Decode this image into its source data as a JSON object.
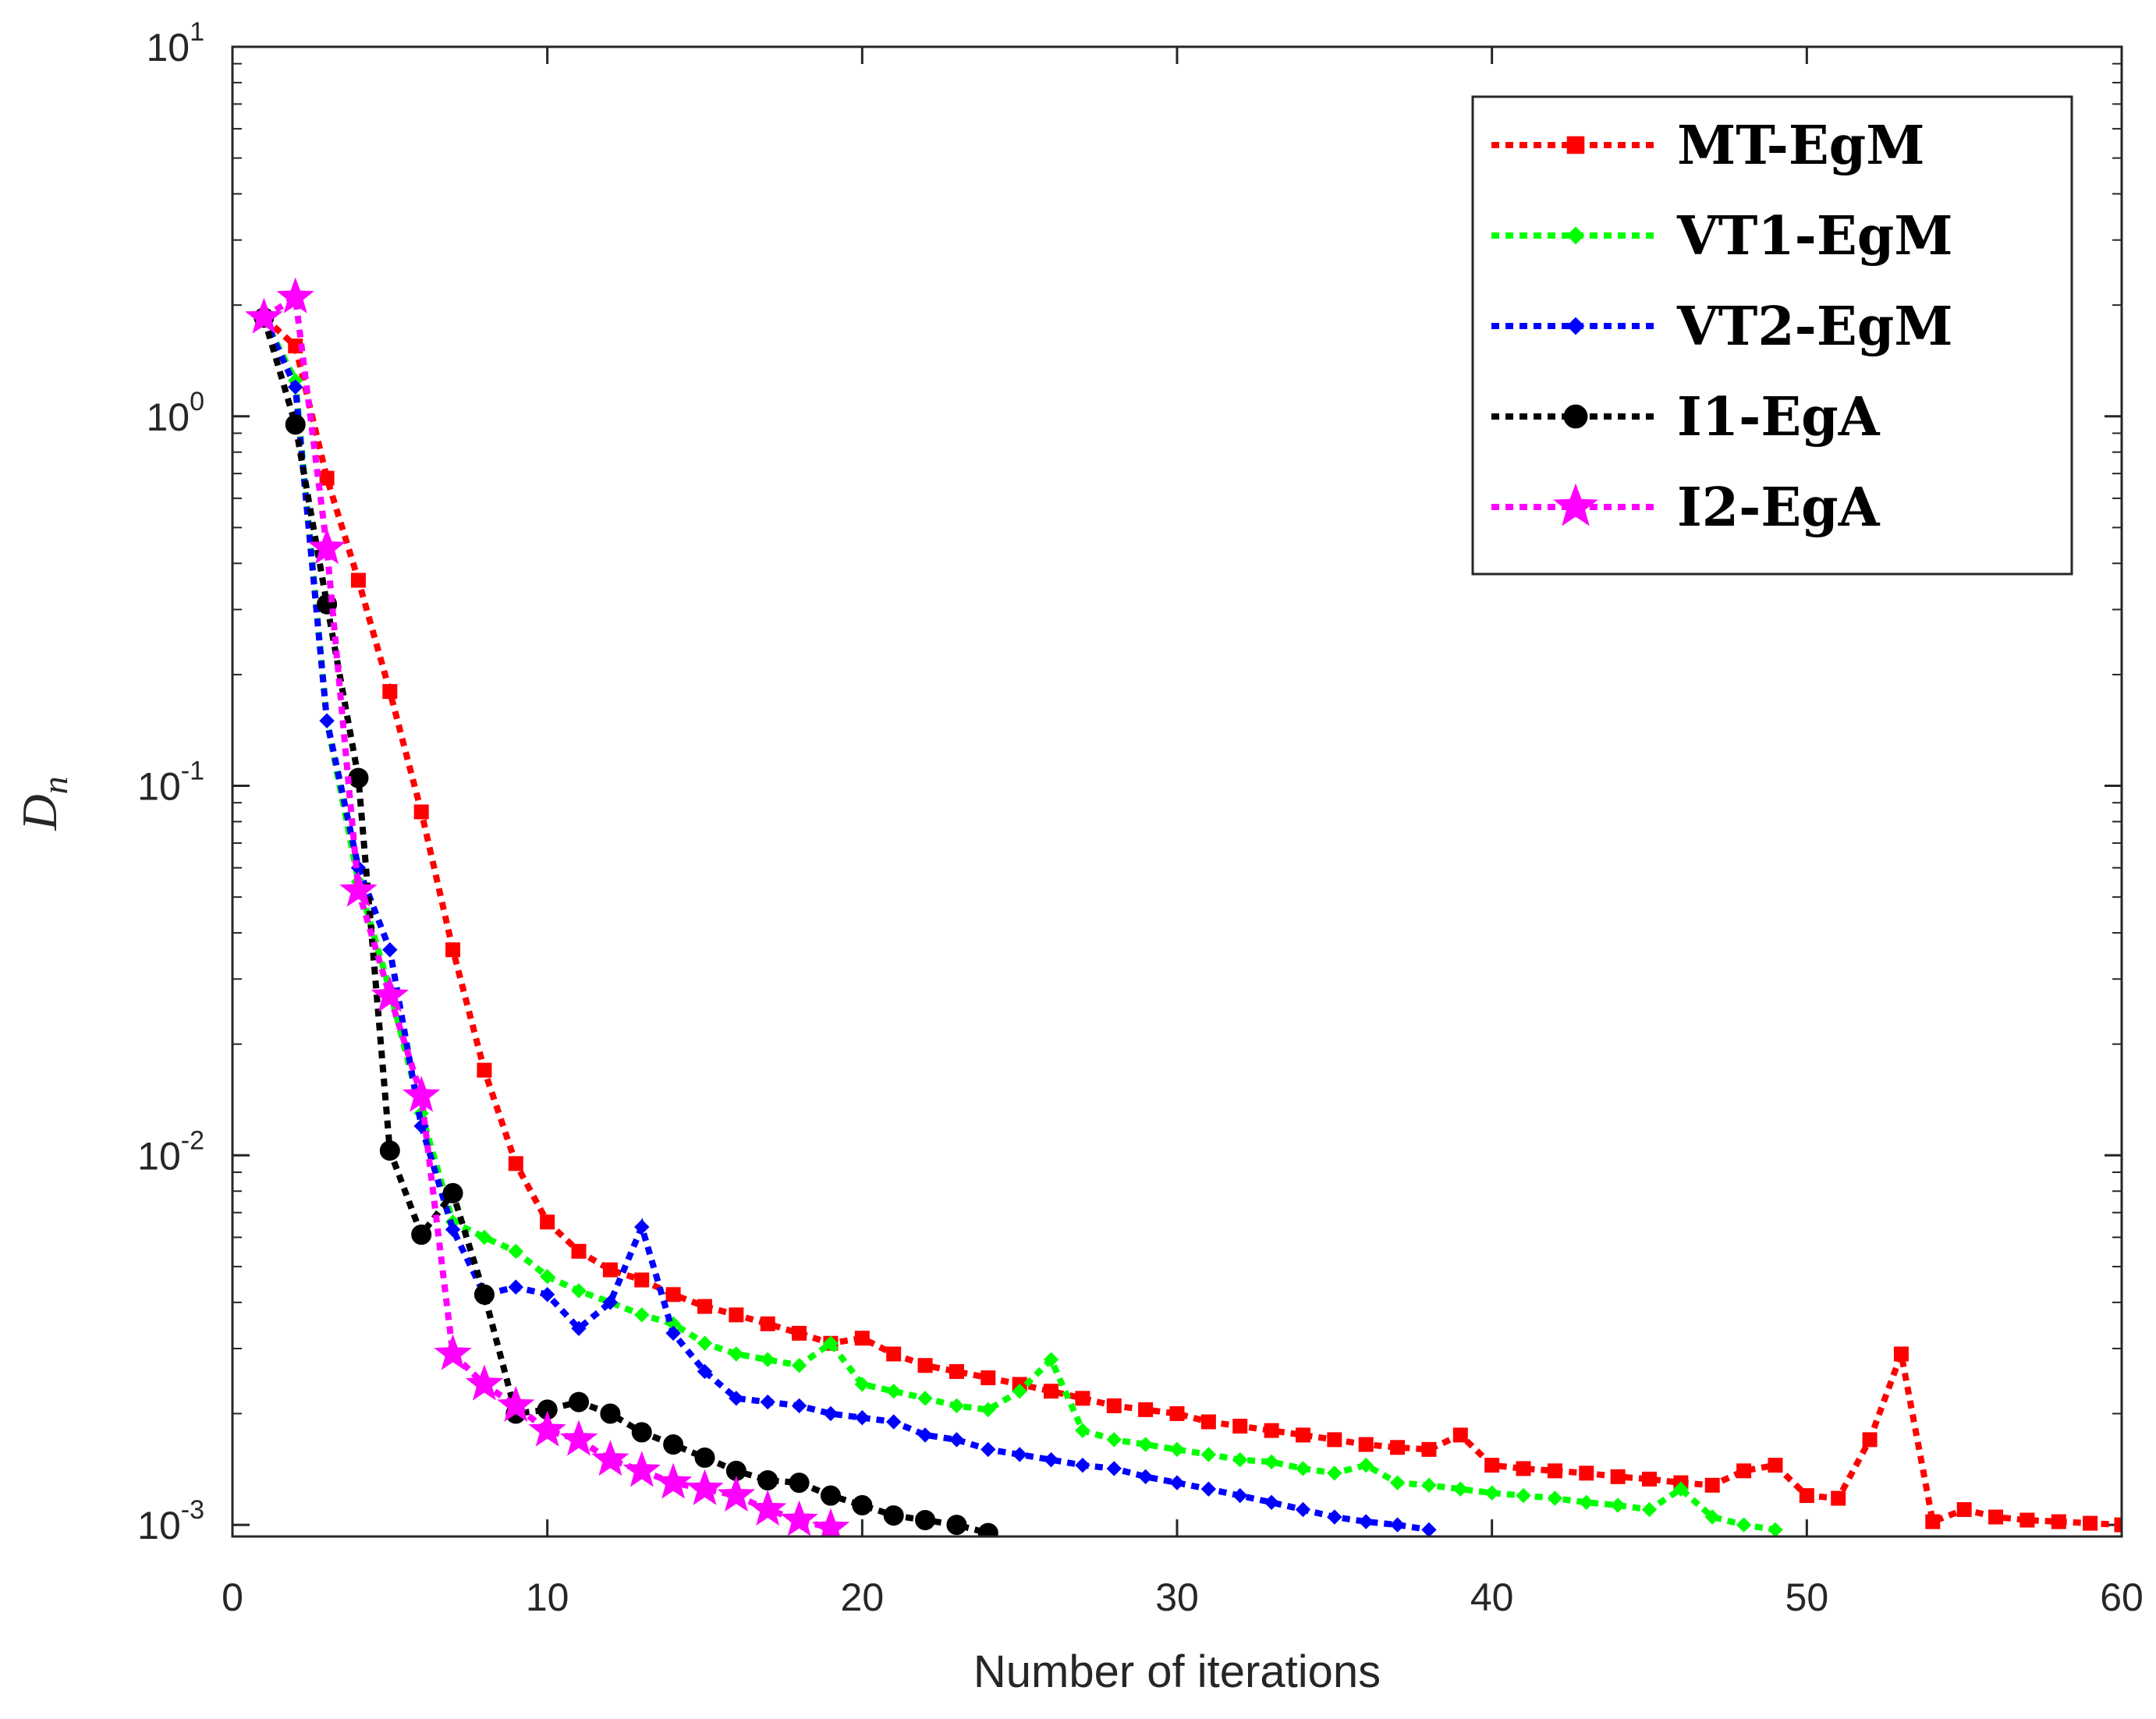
{
  "chart_data": {
    "type": "line",
    "title": "",
    "xlabel": "Number of iterations",
    "ylabel": "D",
    "ylabel_subscript": "n",
    "xlim": [
      0,
      60
    ],
    "ylim": [
      0.00093,
      10
    ],
    "yscale": "log",
    "x_ticks": [
      {
        "value": 0,
        "label": "0"
      },
      {
        "value": 10,
        "label": "10"
      },
      {
        "value": 20,
        "label": "20"
      },
      {
        "value": 30,
        "label": "30"
      },
      {
        "value": 40,
        "label": "40"
      },
      {
        "value": 50,
        "label": "50"
      },
      {
        "value": 60,
        "label": "60"
      }
    ],
    "y_ticks": [
      {
        "value": 0.001,
        "base": "10",
        "exp": "-3"
      },
      {
        "value": 0.01,
        "base": "10",
        "exp": "-2"
      },
      {
        "value": 0.1,
        "base": "10",
        "exp": "-1"
      },
      {
        "value": 1,
        "base": "10",
        "exp": "0"
      },
      {
        "value": 10,
        "base": "10",
        "exp": "1"
      }
    ],
    "grid": false,
    "legend_position": "top-right",
    "series": [
      {
        "name": "MT-EgM",
        "color": "#ff0000",
        "marker": "square",
        "x": [
          1,
          2,
          3,
          4,
          5,
          6,
          7,
          8,
          9,
          10,
          11,
          12,
          13,
          14,
          15,
          16,
          17,
          18,
          19,
          20,
          21,
          22,
          23,
          24,
          25,
          26,
          27,
          28,
          29,
          30,
          31,
          32,
          33,
          34,
          35,
          36,
          37,
          38,
          39,
          40,
          41,
          42,
          43,
          44,
          45,
          46,
          47,
          48,
          49,
          50,
          51,
          52,
          53,
          54,
          55,
          56,
          57,
          58,
          59,
          60
        ],
        "y": [
          1.85,
          1.55,
          0.68,
          0.36,
          0.18,
          0.085,
          0.036,
          0.017,
          0.0095,
          0.0066,
          0.0055,
          0.0049,
          0.0046,
          0.0042,
          0.0039,
          0.0037,
          0.0035,
          0.0033,
          0.0031,
          0.0032,
          0.0029,
          0.0027,
          0.0026,
          0.0025,
          0.0024,
          0.0023,
          0.0022,
          0.0021,
          0.00205,
          0.002,
          0.0019,
          0.00185,
          0.0018,
          0.00175,
          0.0017,
          0.00165,
          0.00162,
          0.0016,
          0.00175,
          0.00145,
          0.00142,
          0.0014,
          0.00138,
          0.00135,
          0.00133,
          0.0013,
          0.00128,
          0.0014,
          0.00145,
          0.0012,
          0.00118,
          0.0017,
          0.0029,
          0.00102,
          0.0011,
          0.00105,
          0.00103,
          0.00102,
          0.00101,
          0.001
        ]
      },
      {
        "name": "VT1-EgM",
        "color": "#00ff00",
        "marker": "diamond",
        "x": [
          1,
          2,
          3,
          4,
          5,
          6,
          7,
          8,
          9,
          10,
          11,
          12,
          13,
          14,
          15,
          16,
          17,
          18,
          19,
          20,
          21,
          22,
          23,
          24,
          25,
          26,
          27,
          28,
          29,
          30,
          31,
          32,
          33,
          34,
          35,
          36,
          37,
          38,
          39,
          40,
          41,
          42,
          43,
          44,
          45,
          46,
          47,
          48,
          49
        ],
        "y": [
          1.85,
          1.25,
          0.15,
          0.055,
          0.028,
          0.013,
          0.0066,
          0.006,
          0.0055,
          0.0047,
          0.0043,
          0.004,
          0.0037,
          0.0035,
          0.0031,
          0.0029,
          0.0028,
          0.0027,
          0.0031,
          0.0024,
          0.0023,
          0.0022,
          0.0021,
          0.00205,
          0.0023,
          0.0028,
          0.0018,
          0.0017,
          0.00165,
          0.0016,
          0.00155,
          0.0015,
          0.00148,
          0.00142,
          0.00138,
          0.00145,
          0.0013,
          0.00128,
          0.00125,
          0.00122,
          0.0012,
          0.00118,
          0.00115,
          0.00113,
          0.0011,
          0.00125,
          0.00105,
          0.001,
          0.00097
        ]
      },
      {
        "name": "VT2-EgM",
        "color": "#0000ff",
        "marker": "diamond",
        "x": [
          1,
          2,
          3,
          4,
          5,
          6,
          7,
          8,
          9,
          10,
          11,
          12,
          13,
          14,
          15,
          16,
          17,
          18,
          19,
          20,
          21,
          22,
          23,
          24,
          25,
          26,
          27,
          28,
          29,
          30,
          31,
          32,
          33,
          34,
          35,
          36,
          37,
          38
        ],
        "y": [
          1.85,
          1.2,
          0.15,
          0.06,
          0.036,
          0.012,
          0.0063,
          0.0042,
          0.0044,
          0.0042,
          0.0034,
          0.004,
          0.0064,
          0.0033,
          0.0026,
          0.0022,
          0.00215,
          0.0021,
          0.002,
          0.00195,
          0.0019,
          0.00175,
          0.0017,
          0.0016,
          0.00155,
          0.0015,
          0.00145,
          0.00142,
          0.00135,
          0.0013,
          0.00125,
          0.0012,
          0.00115,
          0.0011,
          0.00105,
          0.00102,
          0.001,
          0.00097
        ]
      },
      {
        "name": "I1-EgA",
        "color": "#000000",
        "marker": "circle",
        "x": [
          1,
          2,
          3,
          4,
          5,
          6,
          7,
          8,
          9,
          10,
          11,
          12,
          13,
          14,
          15,
          16,
          17,
          18,
          19,
          20,
          21,
          22,
          23,
          24
        ],
        "y": [
          1.85,
          0.95,
          0.31,
          0.105,
          0.0103,
          0.0061,
          0.0079,
          0.0042,
          0.002,
          0.00205,
          0.00215,
          0.002,
          0.00178,
          0.00165,
          0.00152,
          0.0014,
          0.00132,
          0.0013,
          0.0012,
          0.00113,
          0.00106,
          0.00103,
          0.001,
          0.00095
        ]
      },
      {
        "name": "I2-EgA",
        "color": "#ff00ff",
        "marker": "star",
        "x": [
          1,
          2,
          3,
          4,
          5,
          6,
          7,
          8,
          9,
          10,
          11,
          12,
          13,
          14,
          15,
          16,
          17,
          18,
          19
        ],
        "y": [
          1.85,
          2.1,
          0.44,
          0.052,
          0.027,
          0.0145,
          0.0029,
          0.0024,
          0.0021,
          0.0018,
          0.0017,
          0.0015,
          0.0014,
          0.0013,
          0.00125,
          0.0012,
          0.0011,
          0.00103,
          0.00098
        ]
      }
    ]
  }
}
